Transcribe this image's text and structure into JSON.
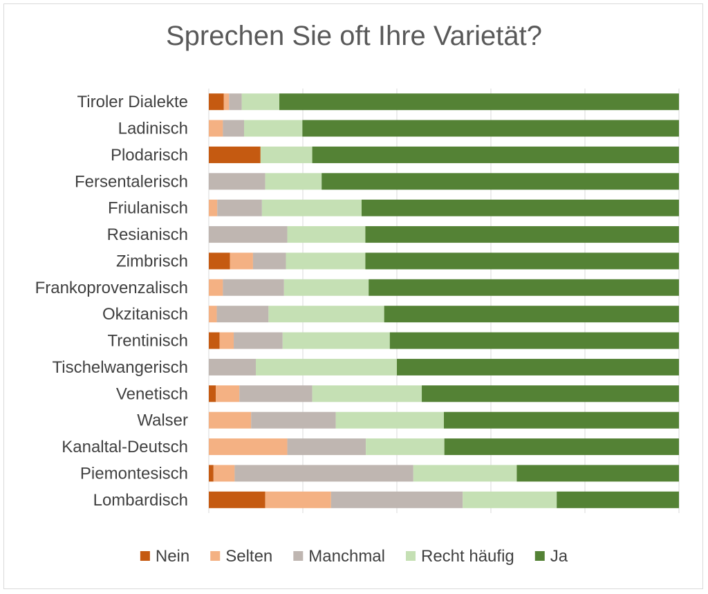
{
  "chart_data": {
    "type": "bar",
    "orientation": "horizontal",
    "stacked": true,
    "percent_stacked": true,
    "title": "Sprechen Sie oft Ihre Varietät?",
    "xlim": [
      0,
      100
    ],
    "grid": true,
    "legend_position": "bottom",
    "categories": [
      "Tiroler Dialekte",
      "Ladinisch",
      "Plodarisch",
      "Fersentalerisch",
      "Friulanisch",
      "Resianisch",
      "Zimbrisch",
      "Frankoprovenzalisch",
      "Okzitanisch",
      "Trentinisch",
      "Tischelwangerisch",
      "Venetisch",
      "Walser",
      "Kanaltal-Deutsch",
      "Piemontesisch",
      "Lombardisch"
    ],
    "series": [
      {
        "name": "Nein",
        "color": "#c55a11",
        "values": [
          3.2,
          0,
          11,
          0,
          0,
          0,
          4.5,
          0,
          0,
          2.3,
          0,
          1.5,
          0,
          0,
          1,
          12
        ]
      },
      {
        "name": "Selten",
        "color": "#f4b183",
        "values": [
          1.1,
          3,
          0,
          0,
          1.8,
          0,
          4.9,
          3,
          1.7,
          3,
          0,
          5,
          9,
          16.7,
          4.5,
          14
        ]
      },
      {
        "name": "Manchmal",
        "color": "#bfb6b1",
        "values": [
          2.7,
          4.5,
          0,
          12,
          9.5,
          16.7,
          7,
          13,
          11,
          10.4,
          10,
          15.5,
          18,
          16.7,
          38,
          28
        ]
      },
      {
        "name": "Recht häufig",
        "color": "#c5e0b4",
        "values": [
          8,
          12.4,
          11,
          12,
          21.2,
          16.6,
          16.9,
          18,
          24.6,
          22.8,
          30,
          23.3,
          23,
          16.7,
          22,
          20
        ]
      },
      {
        "name": "Ja",
        "color": "#548235",
        "values": [
          85,
          80.1,
          78,
          76,
          67.5,
          66.7,
          66.7,
          66,
          62.7,
          61.5,
          60,
          54.7,
          50,
          49.9,
          34.5,
          26
        ]
      }
    ]
  }
}
